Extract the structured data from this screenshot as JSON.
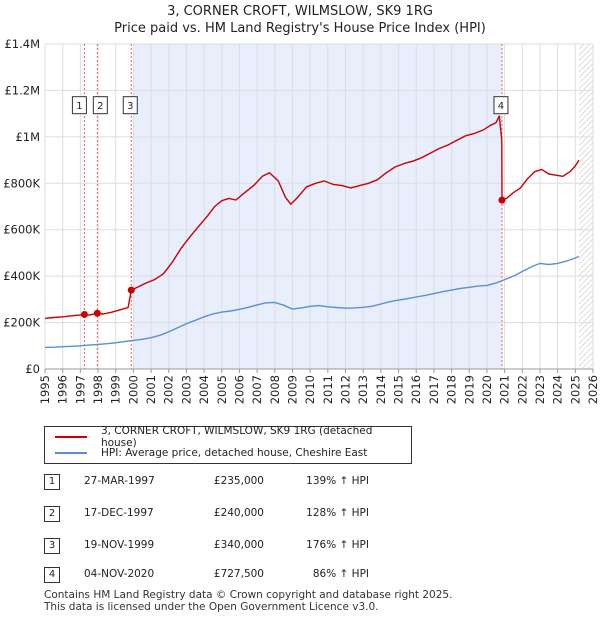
{
  "title": "3, CORNER CROFT, WILMSLOW, SK9 1RG",
  "subtitle": "Price paid vs. HM Land Registry's House Price Index (HPI)",
  "chart_data": {
    "type": "line",
    "xlim": [
      1995,
      2026
    ],
    "ylim": [
      0,
      1400000
    ],
    "x_ticks": [
      "1995",
      "1996",
      "1997",
      "1998",
      "1999",
      "2000",
      "2001",
      "2002",
      "2003",
      "2004",
      "2005",
      "2006",
      "2007",
      "2008",
      "2009",
      "2010",
      "2011",
      "2012",
      "2013",
      "2014",
      "2015",
      "2016",
      "2017",
      "2018",
      "2019",
      "2020",
      "2021",
      "2022",
      "2023",
      "2024",
      "2025",
      "2026"
    ],
    "y_ticks": [
      {
        "value": 0,
        "label": "£0"
      },
      {
        "value": 200000,
        "label": "£200K"
      },
      {
        "value": 400000,
        "label": "£400K"
      },
      {
        "value": 600000,
        "label": "£600K"
      },
      {
        "value": 800000,
        "label": "£800K"
      },
      {
        "value": 1000000,
        "label": "£1M"
      },
      {
        "value": 1200000,
        "label": "£1.2M"
      },
      {
        "value": 1400000,
        "label": "£1.4M"
      }
    ],
    "shaded_range": [
      2000.0,
      2020.85
    ],
    "future_from": 2025.2,
    "colors": {
      "property": "#cc0000",
      "hpi": "#5b8ed6",
      "shade": "#e8eefb",
      "grid": "#dddddd",
      "vline": "#e06666"
    },
    "series": [
      {
        "name": "3, CORNER CROFT, WILMSLOW, SK9 1RG (detached house)",
        "color": "#cc0000",
        "points": [
          [
            1995.0,
            218000
          ],
          [
            1995.5,
            222000
          ],
          [
            1996.0,
            225000
          ],
          [
            1996.5,
            229000
          ],
          [
            1997.0,
            233000
          ],
          [
            1997.23,
            235000
          ],
          [
            1997.5,
            232000
          ],
          [
            1997.96,
            240000
          ],
          [
            1998.3,
            237000
          ],
          [
            1998.8,
            245000
          ],
          [
            1999.3,
            256000
          ],
          [
            1999.7,
            265000
          ],
          [
            1999.88,
            340000
          ],
          [
            2000.3,
            355000
          ],
          [
            2000.7,
            370000
          ],
          [
            2001.2,
            385000
          ],
          [
            2001.7,
            410000
          ],
          [
            2002.2,
            460000
          ],
          [
            2002.7,
            520000
          ],
          [
            2003.2,
            570000
          ],
          [
            2003.7,
            615000
          ],
          [
            2004.2,
            660000
          ],
          [
            2004.6,
            700000
          ],
          [
            2005.0,
            725000
          ],
          [
            2005.4,
            735000
          ],
          [
            2005.8,
            728000
          ],
          [
            2006.3,
            760000
          ],
          [
            2006.8,
            790000
          ],
          [
            2007.3,
            830000
          ],
          [
            2007.7,
            845000
          ],
          [
            2008.2,
            810000
          ],
          [
            2008.6,
            740000
          ],
          [
            2008.9,
            710000
          ],
          [
            2009.3,
            740000
          ],
          [
            2009.8,
            785000
          ],
          [
            2010.3,
            800000
          ],
          [
            2010.8,
            810000
          ],
          [
            2011.3,
            795000
          ],
          [
            2011.8,
            790000
          ],
          [
            2012.3,
            780000
          ],
          [
            2012.8,
            790000
          ],
          [
            2013.3,
            800000
          ],
          [
            2013.8,
            815000
          ],
          [
            2014.3,
            845000
          ],
          [
            2014.8,
            870000
          ],
          [
            2015.3,
            885000
          ],
          [
            2015.8,
            895000
          ],
          [
            2016.3,
            910000
          ],
          [
            2016.8,
            930000
          ],
          [
            2017.3,
            950000
          ],
          [
            2017.8,
            965000
          ],
          [
            2018.3,
            985000
          ],
          [
            2018.8,
            1005000
          ],
          [
            2019.3,
            1015000
          ],
          [
            2019.8,
            1030000
          ],
          [
            2020.2,
            1050000
          ],
          [
            2020.5,
            1060000
          ],
          [
            2020.7,
            1090000
          ],
          [
            2020.84,
            985000
          ],
          [
            2020.85,
            727500
          ],
          [
            2021.1,
            735000
          ],
          [
            2021.5,
            760000
          ],
          [
            2021.9,
            780000
          ],
          [
            2022.3,
            820000
          ],
          [
            2022.7,
            850000
          ],
          [
            2023.1,
            860000
          ],
          [
            2023.5,
            840000
          ],
          [
            2023.9,
            835000
          ],
          [
            2024.3,
            830000
          ],
          [
            2024.7,
            850000
          ],
          [
            2025.0,
            875000
          ],
          [
            2025.2,
            900000
          ]
        ]
      },
      {
        "name": "HPI: Average price, detached house, Cheshire East",
        "color": "#5b8ed6",
        "points": [
          [
            1995.0,
            93000
          ],
          [
            1995.5,
            94000
          ],
          [
            1996.0,
            96000
          ],
          [
            1996.5,
            98000
          ],
          [
            1997.0,
            100000
          ],
          [
            1997.5,
            103000
          ],
          [
            1998.0,
            106000
          ],
          [
            1998.5,
            109000
          ],
          [
            1999.0,
            113000
          ],
          [
            1999.5,
            118000
          ],
          [
            2000.0,
            123000
          ],
          [
            2000.5,
            128000
          ],
          [
            2001.0,
            135000
          ],
          [
            2001.5,
            145000
          ],
          [
            2002.0,
            160000
          ],
          [
            2002.5,
            178000
          ],
          [
            2003.0,
            195000
          ],
          [
            2003.5,
            210000
          ],
          [
            2004.0,
            225000
          ],
          [
            2004.5,
            237000
          ],
          [
            2005.0,
            245000
          ],
          [
            2005.5,
            250000
          ],
          [
            2006.0,
            257000
          ],
          [
            2006.5,
            266000
          ],
          [
            2007.0,
            276000
          ],
          [
            2007.5,
            285000
          ],
          [
            2008.0,
            287000
          ],
          [
            2008.5,
            275000
          ],
          [
            2009.0,
            258000
          ],
          [
            2009.5,
            263000
          ],
          [
            2010.0,
            270000
          ],
          [
            2010.5,
            273000
          ],
          [
            2011.0,
            268000
          ],
          [
            2011.5,
            265000
          ],
          [
            2012.0,
            262000
          ],
          [
            2012.5,
            263000
          ],
          [
            2013.0,
            266000
          ],
          [
            2013.5,
            270000
          ],
          [
            2014.0,
            280000
          ],
          [
            2014.5,
            290000
          ],
          [
            2015.0,
            297000
          ],
          [
            2015.5,
            303000
          ],
          [
            2016.0,
            310000
          ],
          [
            2016.5,
            317000
          ],
          [
            2017.0,
            325000
          ],
          [
            2017.5,
            333000
          ],
          [
            2018.0,
            340000
          ],
          [
            2018.5,
            347000
          ],
          [
            2019.0,
            352000
          ],
          [
            2019.5,
            357000
          ],
          [
            2020.0,
            360000
          ],
          [
            2020.5,
            370000
          ],
          [
            2021.0,
            385000
          ],
          [
            2021.5,
            400000
          ],
          [
            2022.0,
            420000
          ],
          [
            2022.5,
            440000
          ],
          [
            2023.0,
            455000
          ],
          [
            2023.5,
            450000
          ],
          [
            2024.0,
            455000
          ],
          [
            2024.5,
            465000
          ],
          [
            2025.0,
            478000
          ],
          [
            2025.2,
            485000
          ]
        ]
      }
    ],
    "sales": [
      {
        "num": "1",
        "x": 1997.23,
        "y": 235000
      },
      {
        "num": "2",
        "x": 1997.96,
        "y": 240000
      },
      {
        "num": "3",
        "x": 1999.88,
        "y": 340000
      },
      {
        "num": "4",
        "x": 2020.85,
        "y": 727500
      }
    ],
    "marker_label_y": [
      1130000,
      1130000,
      1130000,
      1130000
    ]
  },
  "legend": {
    "property_label": "3, CORNER CROFT, WILMSLOW, SK9 1RG (detached house)",
    "hpi_label": "HPI: Average price, detached house, Cheshire East"
  },
  "sales_table": [
    {
      "num": "1",
      "date": "27-MAR-1997",
      "price": "£235,000",
      "hpi": "139% ↑ HPI"
    },
    {
      "num": "2",
      "date": "17-DEC-1997",
      "price": "£240,000",
      "hpi": "128% ↑ HPI"
    },
    {
      "num": "3",
      "date": "19-NOV-1999",
      "price": "£340,000",
      "hpi": "176% ↑ HPI"
    },
    {
      "num": "4",
      "date": "04-NOV-2020",
      "price": "£727,500",
      "hpi": "86% ↑ HPI"
    }
  ],
  "footer": {
    "line1": "Contains HM Land Registry data © Crown copyright and database right 2025.",
    "line2": "This data is licensed under the Open Government Licence v3.0."
  }
}
